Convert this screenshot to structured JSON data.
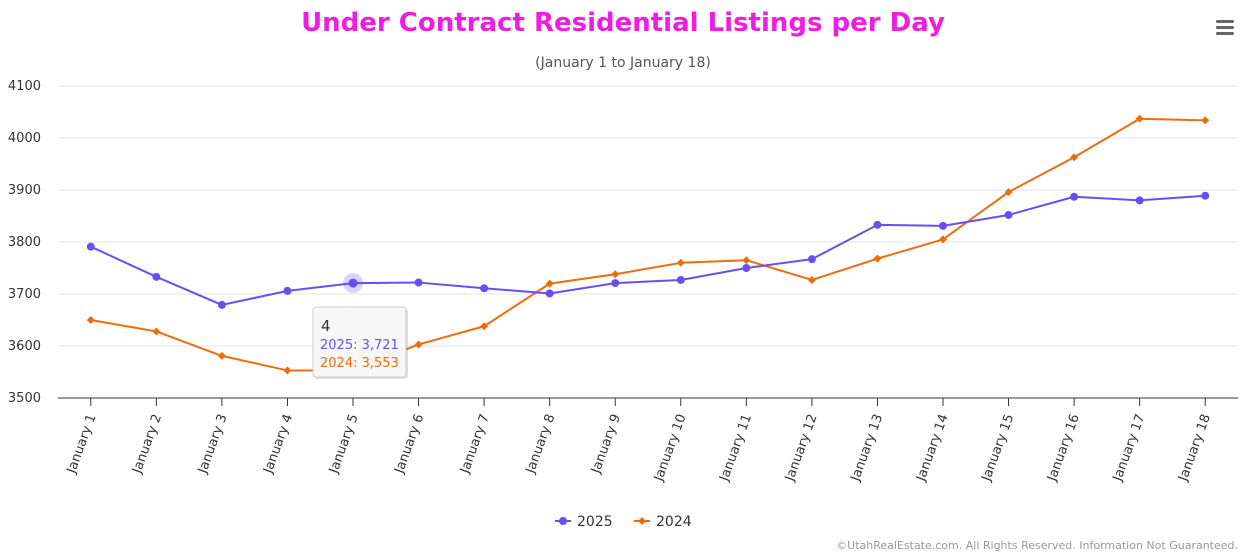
{
  "chart_data": {
    "type": "line",
    "title": "Under Contract Residential Listings per Day",
    "subtitle": "(January 1 to January 18)",
    "categories": [
      "January 1",
      "January 2",
      "January 3",
      "January 4",
      "January 5",
      "January 6",
      "January 7",
      "January 8",
      "January 9",
      "January 10",
      "January 11",
      "January 12",
      "January 13",
      "January 14",
      "January 15",
      "January 16",
      "January 17",
      "January 18"
    ],
    "series": [
      {
        "name": "2025",
        "color": "#6b4ef2",
        "marker": "circle",
        "values": [
          3791,
          3733,
          3679,
          3706,
          3721,
          3722,
          3711,
          3701,
          3721,
          3727,
          3750,
          3767,
          3833,
          3831,
          3852,
          3887,
          3880,
          3889
        ]
      },
      {
        "name": "2024",
        "color": "#ec6d0f",
        "marker": "diamond",
        "values": [
          3650,
          3628,
          3581,
          3553,
          3553,
          3603,
          3638,
          3720,
          3738,
          3760,
          3765,
          3727,
          3768,
          3805,
          3896,
          3963,
          4037,
          4034
        ]
      }
    ],
    "ylim": [
      3500,
      4100
    ],
    "yticks": [
      3500,
      3600,
      3700,
      3800,
      3900,
      4000,
      4100
    ],
    "grid": true,
    "legend": "bottom-center",
    "title_color": "#ee1ee0"
  },
  "tooltip": {
    "header": "4",
    "lines": [
      {
        "series": "2025",
        "label": "2025: 3,721"
      },
      {
        "series": "2024",
        "label": "2024: 3,553"
      }
    ],
    "index": 4
  },
  "menu": {
    "icon": "hamburger-menu-icon"
  },
  "credits": "©UtahRealEstate.com. All Rights Reserved. Information Not Guaranteed."
}
